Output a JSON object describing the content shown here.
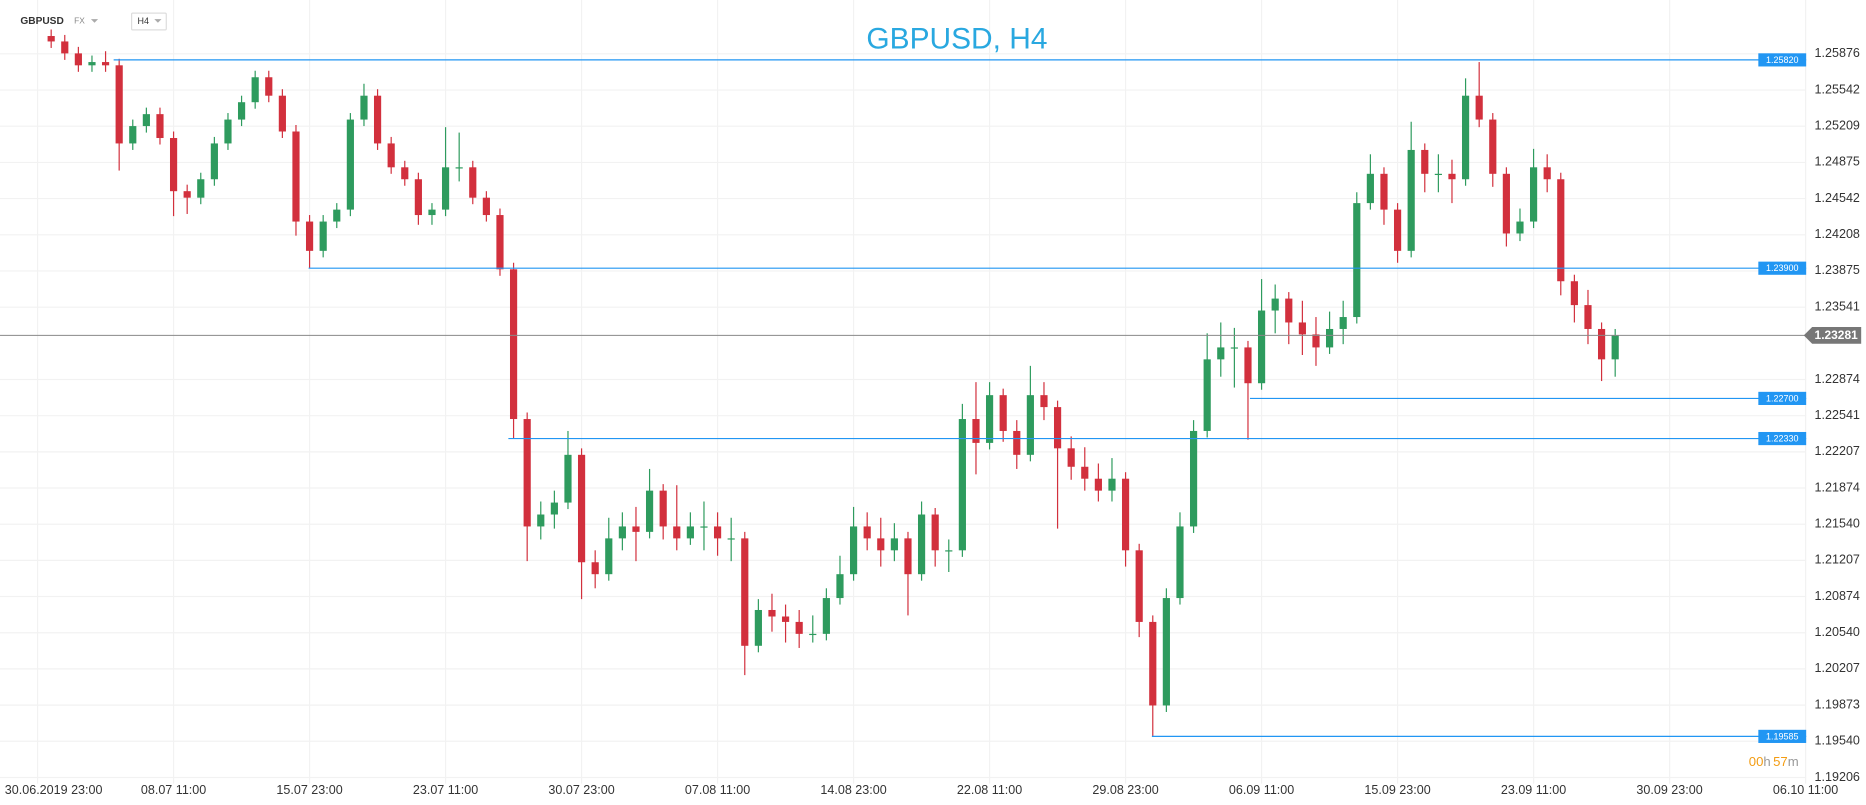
{
  "chart_data": {
    "type": "candlestick",
    "title": "GBPUSD, H4",
    "symbol": "GBPUSD",
    "market": "FX",
    "timeframe": "H4",
    "timer": [
      "00",
      "h",
      "57",
      "m"
    ],
    "up_color": "#2e9b5e",
    "down_color": "#d2303d",
    "level_color": "#2196f3",
    "current_color": "#888888",
    "grid": true,
    "ylim": [
      1.1915,
      1.2606
    ],
    "yticks": [
      1.25876,
      1.25542,
      1.25209,
      1.24875,
      1.24542,
      1.24208,
      1.23875,
      1.23541,
      1.22874,
      1.22541,
      1.22207,
      1.21874,
      {
        "value": 1.2154,
        "label": "1.21540"
      },
      1.21207,
      1.20874,
      {
        "value": 1.2054,
        "label": "1.20540"
      },
      1.20207,
      1.19873,
      {
        "value": 1.1954,
        "label": "1.19540"
      },
      1.19206
    ],
    "xticks": [
      "30.06.2019  23:00",
      "08.07  11:00",
      "15.07  23:00",
      "23.07  11:00",
      "30.07  23:00",
      "07.08  11:00",
      "14.08  23:00",
      "22.08  11:00",
      "29.08  23:00",
      "06.09  11:00",
      "15.09  23:00",
      "23.09  11:00",
      "30.09  23:00",
      "06.10  11:00"
    ],
    "levels": [
      {
        "value": 1.2582,
        "label": "1.25820"
      },
      {
        "value": 1.239,
        "label": "1.23900"
      },
      {
        "value": 1.227,
        "label": "1.22700"
      },
      {
        "value": 1.2233,
        "label": "1.22330"
      },
      {
        "value": 1.19585,
        "label": "1.19585"
      }
    ],
    "current_price": {
      "value": 1.23281,
      "label": "1.23281"
    },
    "open": [
      1.2604,
      1.2599,
      1.2588,
      1.2577,
      1.258,
      1.2577,
      1.2505,
      1.2521,
      1.2532,
      1.251,
      1.2461,
      1.2455,
      1.2472,
      1.2505,
      1.2527,
      1.2543,
      1.2566,
      1.2549,
      1.2516,
      1.2433,
      1.2406,
      1.2433,
      1.2444,
      1.2527,
      1.2549,
      1.2505,
      1.2483,
      1.2472,
      1.2439,
      1.2444,
      1.2483,
      1.2483,
      1.2455,
      1.2439,
      1.2389,
      1.2251,
      1.2152,
      1.2163,
      1.2174,
      1.2218,
      1.2119,
      1.2108,
      1.2141,
      1.2152,
      1.2147,
      1.2185,
      1.2152,
      1.2141,
      1.2152,
      1.2152,
      1.2141,
      1.2141,
      1.2042,
      1.2075,
      1.2069,
      1.2064,
      1.2053,
      1.2053,
      1.2086,
      1.2108,
      1.2152,
      1.2141,
      1.213,
      1.2141,
      1.2108,
      1.2163,
      1.213,
      1.213,
      1.2251,
      1.2229,
      1.2273,
      1.224,
      1.2218,
      1.2273,
      1.2262,
      1.2224,
      1.2207,
      1.2196,
      1.2185,
      1.2196,
      1.213,
      1.2064,
      1.1987,
      1.2086,
      1.2152,
      1.224,
      1.2306,
      1.2317,
      1.2317,
      1.2284,
      1.2351,
      1.2362,
      1.234,
      1.2329,
      1.2317,
      1.2334,
      1.2345,
      1.245,
      1.2477,
      1.2444,
      1.2406,
      1.2499,
      1.2477,
      1.2477,
      1.2472,
      1.2549,
      1.2527,
      1.2477,
      1.2422,
      1.2433,
      1.2483,
      1.2472,
      1.2378,
      1.2356,
      1.2334,
      1.2306
    ],
    "high": [
      1.261,
      1.2605,
      1.2594,
      1.2586,
      1.259,
      1.2583,
      1.2527,
      1.2538,
      1.2538,
      1.2516,
      1.2467,
      1.2478,
      1.2511,
      1.2533,
      1.2549,
      1.2572,
      1.2572,
      1.2555,
      1.2522,
      1.2439,
      1.2439,
      1.245,
      1.2533,
      1.256,
      1.2555,
      1.2511,
      1.2489,
      1.2478,
      1.245,
      1.252,
      1.2515,
      1.2489,
      1.2461,
      1.2445,
      1.2395,
      1.2257,
      1.2175,
      1.2185,
      1.224,
      1.2224,
      1.213,
      1.216,
      1.2165,
      1.217,
      1.2205,
      1.2191,
      1.219,
      1.2165,
      1.2175,
      1.2165,
      1.216,
      1.2147,
      1.2085,
      1.209,
      1.208,
      1.2075,
      1.207,
      1.2095,
      1.2125,
      1.217,
      1.2165,
      1.216,
      1.2155,
      1.2147,
      1.2175,
      1.2169,
      1.214,
      1.2265,
      1.2285,
      1.2285,
      1.2279,
      1.225,
      1.23,
      1.2285,
      1.2268,
      1.2235,
      1.2225,
      1.221,
      1.2215,
      1.2202,
      1.2136,
      1.207,
      1.2095,
      1.2165,
      1.225,
      1.233,
      1.234,
      1.2335,
      1.2323,
      1.238,
      1.2375,
      1.2368,
      1.236,
      1.2345,
      1.235,
      1.236,
      1.246,
      1.2495,
      1.2483,
      1.245,
      1.2525,
      1.2505,
      1.2495,
      1.249,
      1.2565,
      1.258,
      1.2533,
      1.2483,
      1.2445,
      1.25,
      1.2495,
      1.2478,
      1.2384,
      1.237,
      1.234,
      1.2334
    ],
    "low": [
      1.2593,
      1.2582,
      1.2571,
      1.2571,
      1.2571,
      1.248,
      1.2499,
      1.2515,
      1.2504,
      1.2438,
      1.244,
      1.2449,
      1.2466,
      1.2499,
      1.2521,
      1.2537,
      1.2543,
      1.251,
      1.242,
      1.239,
      1.24,
      1.2427,
      1.2438,
      1.2521,
      1.2499,
      1.2477,
      1.2466,
      1.243,
      1.243,
      1.2438,
      1.247,
      1.2449,
      1.2433,
      1.2383,
      1.2233,
      1.212,
      1.214,
      1.215,
      1.2168,
      1.2085,
      1.2095,
      1.2102,
      1.213,
      1.212,
      1.2141,
      1.214,
      1.213,
      1.2135,
      1.213,
      1.2125,
      1.212,
      1.2015,
      1.2036,
      1.2055,
      1.2045,
      1.204,
      1.2045,
      1.2047,
      1.208,
      1.2102,
      1.213,
      1.2115,
      1.212,
      1.207,
      1.2102,
      1.2115,
      1.211,
      1.2124,
      1.22,
      1.2223,
      1.223,
      1.2205,
      1.2212,
      1.225,
      1.215,
      1.2195,
      1.2185,
      1.2175,
      1.2175,
      1.2115,
      1.205,
      1.1958,
      1.1981,
      1.208,
      1.2146,
      1.2234,
      1.229,
      1.228,
      1.2232,
      1.2278,
      1.233,
      1.232,
      1.231,
      1.23,
      1.2311,
      1.232,
      1.2339,
      1.2444,
      1.243,
      1.2395,
      1.24,
      1.246,
      1.246,
      1.245,
      1.2466,
      1.252,
      1.2465,
      1.241,
      1.2415,
      1.2427,
      1.246,
      1.2365,
      1.234,
      1.232,
      1.2286,
      1.229
    ],
    "close": [
      1.2599,
      1.2588,
      1.2577,
      1.258,
      1.2577,
      1.2505,
      1.2521,
      1.2532,
      1.251,
      1.2461,
      1.2455,
      1.2472,
      1.2505,
      1.2527,
      1.2543,
      1.2566,
      1.2549,
      1.2516,
      1.2433,
      1.2406,
      1.2433,
      1.2444,
      1.2527,
      1.2549,
      1.2505,
      1.2483,
      1.2472,
      1.2439,
      1.2444,
      1.2483,
      1.2483,
      1.2455,
      1.2439,
      1.2389,
      1.2251,
      1.2152,
      1.2163,
      1.2174,
      1.2218,
      1.2119,
      1.2108,
      1.2141,
      1.2152,
      1.2147,
      1.2185,
      1.2152,
      1.2141,
      1.2152,
      1.2152,
      1.2141,
      1.2141,
      1.2042,
      1.2075,
      1.2069,
      1.2064,
      1.2053,
      1.2053,
      1.2086,
      1.2108,
      1.2152,
      1.2141,
      1.213,
      1.2141,
      1.2108,
      1.2163,
      1.213,
      1.213,
      1.2251,
      1.2229,
      1.2273,
      1.224,
      1.2218,
      1.2273,
      1.2262,
      1.2224,
      1.2207,
      1.2196,
      1.2185,
      1.2196,
      1.213,
      1.2064,
      1.1987,
      1.2086,
      1.2152,
      1.224,
      1.2306,
      1.2317,
      1.2317,
      1.2284,
      1.2351,
      1.2362,
      1.234,
      1.2329,
      1.2317,
      1.2334,
      1.2345,
      1.245,
      1.2477,
      1.2444,
      1.2406,
      1.2499,
      1.2477,
      1.2477,
      1.2472,
      1.2549,
      1.2527,
      1.2477,
      1.2422,
      1.2433,
      1.2483,
      1.2472,
      1.2378,
      1.2356,
      1.2334,
      1.2306,
      1.2328
    ]
  }
}
